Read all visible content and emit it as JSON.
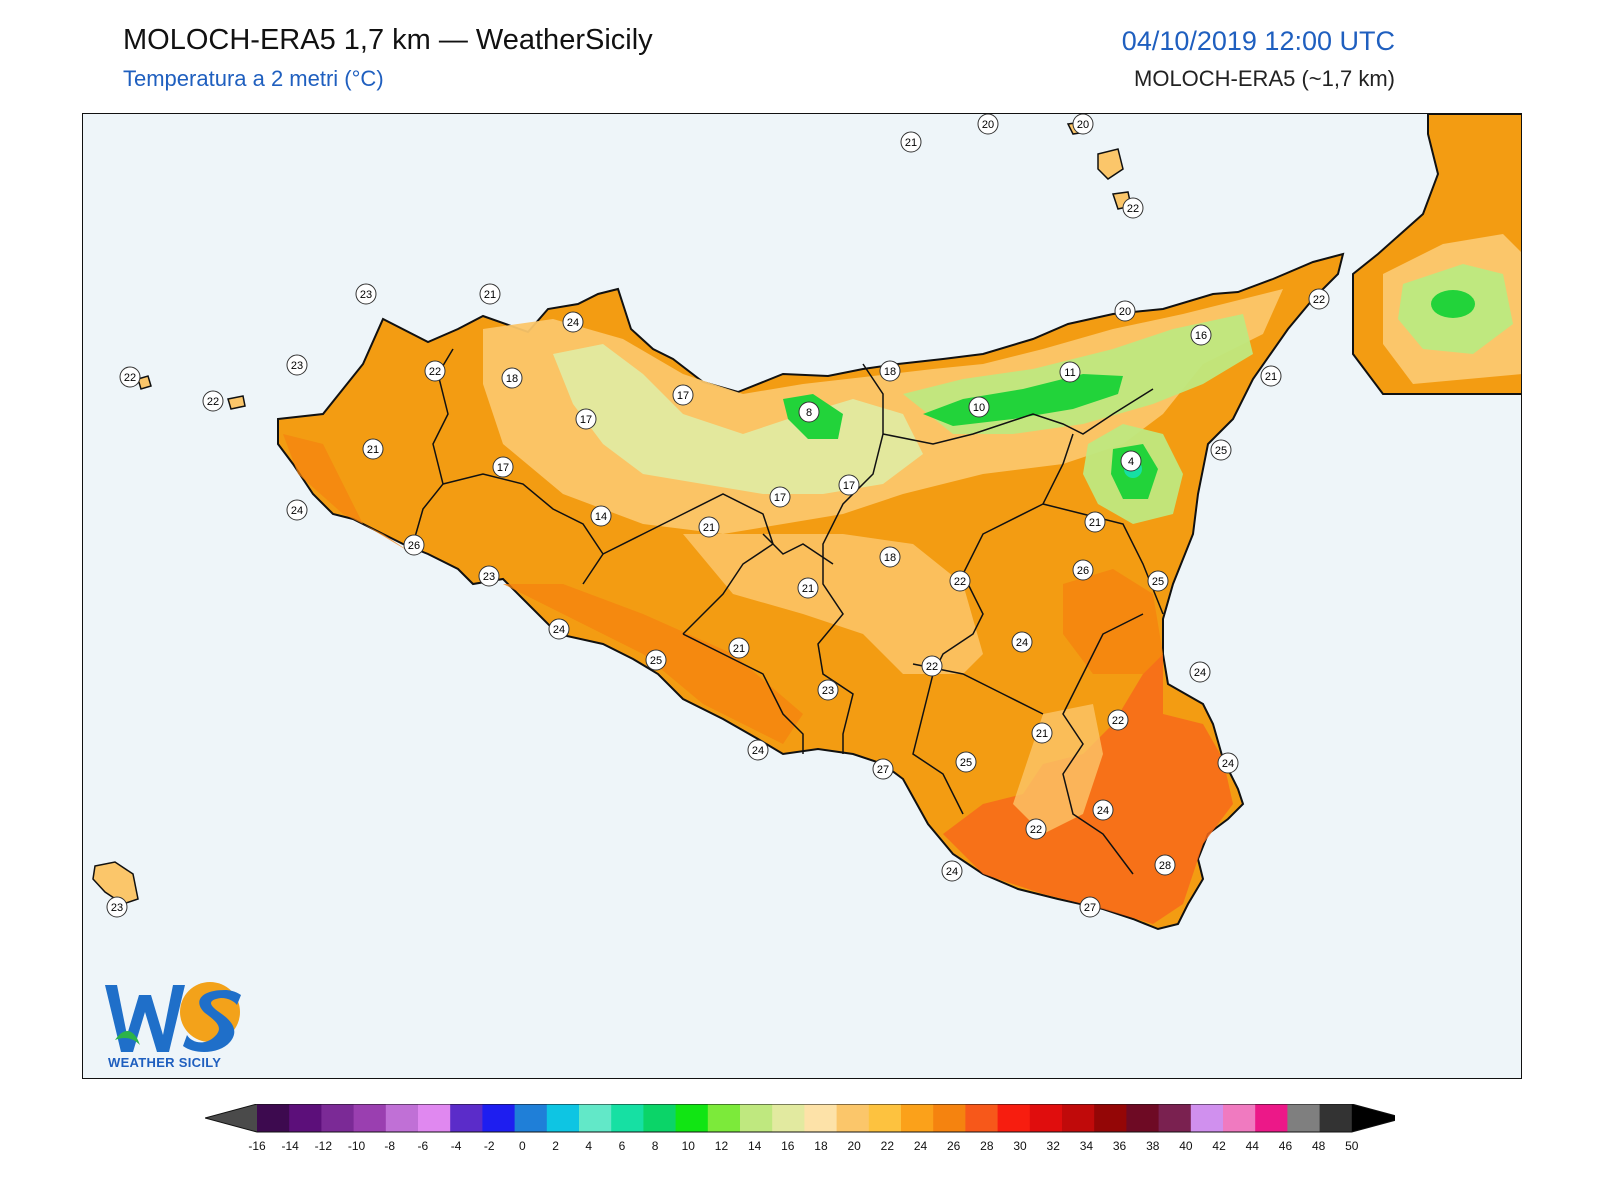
{
  "header": {
    "title": "MOLOCH-ERA5 1,7 km — WeatherSicily",
    "subtitle": "Temperatura a 2 metri (°C)",
    "datetime": "04/10/2019 12:00 UTC",
    "model": "MOLOCH-ERA5 (~1,7 km)"
  },
  "logo": {
    "letters": "WS",
    "text": "WEATHER SICILY"
  },
  "colors": {
    "sea": "#eef5f9",
    "warm": "#f39c12",
    "hot": "#f76a1a",
    "mild": "#fbc66a",
    "cool": "#d9eaa0",
    "cold": "#22d33a"
  },
  "stations": [
    {
      "label": "20"
    },
    {
      "label": "20"
    },
    {
      "label": "21"
    },
    {
      "label": "22"
    },
    {
      "label": "23"
    },
    {
      "label": "21"
    },
    {
      "label": "24"
    },
    {
      "label": "22"
    },
    {
      "label": "20"
    },
    {
      "label": "16"
    },
    {
      "label": "23"
    },
    {
      "label": "22"
    },
    {
      "label": "18"
    },
    {
      "label": "17"
    },
    {
      "label": "18"
    },
    {
      "label": "11"
    },
    {
      "label": "22"
    },
    {
      "label": "22"
    },
    {
      "label": "8"
    },
    {
      "label": "10"
    },
    {
      "label": "17"
    },
    {
      "label": "21"
    },
    {
      "label": "4"
    },
    {
      "label": "25"
    },
    {
      "label": "21"
    },
    {
      "label": "17"
    },
    {
      "label": "17"
    },
    {
      "label": "17"
    },
    {
      "label": "24"
    },
    {
      "label": "26"
    },
    {
      "label": "14"
    },
    {
      "label": "21"
    },
    {
      "label": "21"
    },
    {
      "label": "18"
    },
    {
      "label": "23"
    },
    {
      "label": "22"
    },
    {
      "label": "26"
    },
    {
      "label": "25"
    },
    {
      "label": "21"
    },
    {
      "label": "24"
    },
    {
      "label": "24"
    },
    {
      "label": "24"
    },
    {
      "label": "25"
    },
    {
      "label": "21"
    },
    {
      "label": "22"
    },
    {
      "label": "22"
    },
    {
      "label": "23"
    },
    {
      "label": "21"
    },
    {
      "label": "24"
    },
    {
      "label": "27"
    },
    {
      "label": "25"
    },
    {
      "label": "24"
    },
    {
      "label": "24"
    },
    {
      "label": "22"
    },
    {
      "label": "28"
    },
    {
      "label": "24"
    },
    {
      "label": "27"
    },
    {
      "label": "23"
    }
  ],
  "legend": {
    "ticks": [
      "-16",
      "-14",
      "-12",
      "-10",
      "-8",
      "-6",
      "-4",
      "-2",
      "0",
      "2",
      "4",
      "6",
      "8",
      "10",
      "12",
      "14",
      "16",
      "18",
      "20",
      "22",
      "24",
      "26",
      "28",
      "30",
      "32",
      "34",
      "36",
      "38",
      "40",
      "42",
      "44",
      "46",
      "48",
      "50"
    ],
    "colors": [
      "#3d0a4f",
      "#5c0f7a",
      "#7b2a96",
      "#9a3fb0",
      "#c070d6",
      "#e088f0",
      "#5b2cc9",
      "#1e1ef0",
      "#1f7fd8",
      "#0ec5e3",
      "#62e8c8",
      "#16e0a3",
      "#0bd468",
      "#11e513",
      "#7cea3a",
      "#bfe87f",
      "#e2eaa0",
      "#fde2a8",
      "#fbc66a",
      "#fdc23f",
      "#fba11a",
      "#f5830f",
      "#f7581a",
      "#f71d0f",
      "#e00d0d",
      "#c00a0a",
      "#940606",
      "#6e0a24",
      "#7a2150",
      "#d090ee",
      "#f07ac0",
      "#ec1888",
      "#7f7f7f",
      "#333333"
    ]
  }
}
